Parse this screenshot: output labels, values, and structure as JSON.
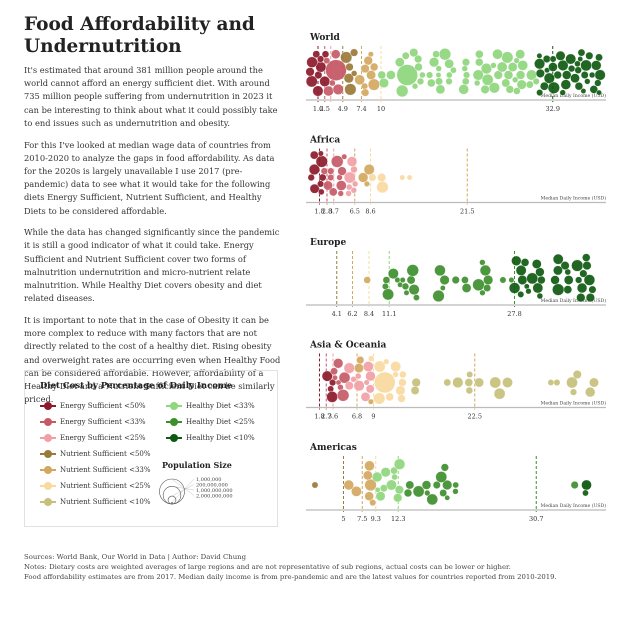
{
  "title": "Food Affordability and Undernutrition",
  "intro": [
    "It's estimated that around 381 million people around the world cannot afford an energy sufficient diet. With around 735 million people suffering from undernutrition in 2023 it can be interesting to think about what it could possibly take to end issues such as undernutrition and obesity.",
    "For this I've looked at median wage data of countries from 2010-2020 to analyze the gaps in food affordability. As data for the 2020s is largely unavailable I use 2017 (pre-pandemic) data to see what it would take for the following diets Energy Sufficient, Nutrient Sufficient, and Healthy Diets to be considered affordable.",
    "While the data has changed significantly since the pandemic it is still a good indicator of what it could take. Energy Sufficient and Nutrient Sufficient cover two forms of malnutrition undernutrition and micro-nutrient relate malnutrition. While Healthy Diet covers obesity and diet related diseases.",
    "It is important to note that in the case of Obesity it can be more complex to reduce with many factors that are not directly related to the cost of a healthy diet. Rising obesity and overweight rates are occurring even when Healthy Food can be considered affordable. However, affordability of a Healthy Diet and a Nutrient Sufficient Diet can be similarly priced."
  ],
  "legend": {
    "title": "Diet Cost by Percentage of Daily Income",
    "items": [
      {
        "label": "Energy Sufficient <50%",
        "color": "#8b1a2b"
      },
      {
        "label": "Energy Sufficient <33%",
        "color": "#c45a66"
      },
      {
        "label": "Energy Sufficient <25%",
        "color": "#f0a0a4"
      },
      {
        "label": "Nutrient Sufficient <50%",
        "color": "#9a7a3a"
      },
      {
        "label": "Nutrient Sufficient <33%",
        "color": "#d2a860"
      },
      {
        "label": "Nutrient Sufficient <25%",
        "color": "#f8d9a0"
      },
      {
        "label": "Nutrient Sufficient <10%",
        "color": "#c6c07a"
      },
      {
        "label": "Healthy Diet <33%",
        "color": "#8fd67e"
      },
      {
        "label": "Healthy Diet <25%",
        "color": "#3e8e2e"
      },
      {
        "label": "Healthy Diet <10%",
        "color": "#0e5a10"
      }
    ],
    "population_title": "Population Size",
    "population_sizes": [
      {
        "label": "1,000,000",
        "value": 1000000
      },
      {
        "label": "200,000,000",
        "value": 200000000
      },
      {
        "label": "1,000,000,000",
        "value": 1000000000
      },
      {
        "label": "2,000,000,000",
        "value": 2000000000
      }
    ]
  },
  "chart_data": [
    {
      "type": "scatter",
      "title": "World",
      "xlabel": "Median Daily Income (USD)",
      "xlim": [
        0,
        40
      ],
      "thresholds": [
        {
          "value": 1.6,
          "label": "1.6",
          "color": "#8b1a2b"
        },
        {
          "value": 2.5,
          "label": "2.5",
          "color": "#c45a66"
        },
        {
          "value": 3.3,
          "label": "",
          "color": "#f0a0a4"
        },
        {
          "value": 4.9,
          "label": "4.9",
          "color": "#9a7a3a"
        },
        {
          "value": 7.4,
          "label": "7.4",
          "color": "#d2a860"
        },
        {
          "value": 10,
          "label": "10",
          "color": "#f8d9a0"
        },
        {
          "value": 32.9,
          "label": "32.9",
          "color": "#0e5a10"
        }
      ],
      "clusters": [
        {
          "from": 0.5,
          "to": 2.6,
          "color": "#8b1a2b",
          "count": 22,
          "seed": 1
        },
        {
          "from": 2.6,
          "to": 5.0,
          "color": "#c45a66",
          "count": 34,
          "seed": 2,
          "big": [
            {
              "x": 4.0,
              "pop": 1400000000
            }
          ]
        },
        {
          "from": 4.9,
          "to": 7.0,
          "color": "#9a7a3a",
          "count": 20,
          "seed": 3
        },
        {
          "from": 7.0,
          "to": 9.8,
          "color": "#d2a860",
          "count": 10,
          "seed": 4
        },
        {
          "from": 9.5,
          "to": 31.0,
          "color": "#8fd67e",
          "count": 75,
          "seed": 5,
          "big": [
            {
              "x": 13.5,
              "pop": 1400000000
            }
          ]
        },
        {
          "from": 31.0,
          "to": 39.5,
          "color": "#0e5a10",
          "count": 50,
          "seed": 6
        }
      ]
    },
    {
      "type": "scatter",
      "title": "Africa",
      "xlabel": "Median Daily Income (USD)",
      "xlim": [
        0,
        40
      ],
      "thresholds": [
        {
          "value": 1.8,
          "label": "1.8",
          "color": "#8b1a2b"
        },
        {
          "value": 2.8,
          "label": "2.8",
          "color": "#c45a66"
        },
        {
          "value": 3.7,
          "label": "3.7",
          "color": "#f0a0a4"
        },
        {
          "value": 6.5,
          "label": "6.5",
          "color": "#d2a860"
        },
        {
          "value": 8.6,
          "label": "8.6",
          "color": "#f8d9a0"
        },
        {
          "value": 21.5,
          "label": "21.5",
          "color": "#d2a860"
        }
      ],
      "clusters": [
        {
          "from": 0.5,
          "to": 2.4,
          "color": "#8b1a2b",
          "count": 14,
          "seed": 11
        },
        {
          "from": 2.4,
          "to": 5.2,
          "color": "#c45a66",
          "count": 20,
          "seed": 12
        },
        {
          "from": 4.8,
          "to": 6.6,
          "color": "#f0a0a4",
          "count": 14,
          "seed": 13
        },
        {
          "from": 7.0,
          "to": 8.5,
          "color": "#d2a860",
          "count": 3,
          "seed": 14
        },
        {
          "from": 8.8,
          "to": 14.0,
          "color": "#f8d9a0",
          "count": 5,
          "seed": 15
        }
      ]
    },
    {
      "type": "scatter",
      "title": "Europe",
      "xlabel": "Median Daily Income (USD)",
      "xlim": [
        0,
        40
      ],
      "thresholds": [
        {
          "value": 4.1,
          "label": "4.1",
          "color": "#9a7a3a"
        },
        {
          "value": 6.2,
          "label": "6.2",
          "color": "#d2a860"
        },
        {
          "value": 8.4,
          "label": "8.4",
          "color": "#f8d9a0"
        },
        {
          "value": 11.1,
          "label": "11.1",
          "color": "#8fd67e"
        },
        {
          "value": 27.8,
          "label": "27.8",
          "color": "#3e8e2e"
        }
      ],
      "clusters": [
        {
          "from": 8.0,
          "to": 8.6,
          "color": "#d2a860",
          "count": 1,
          "seed": 21
        },
        {
          "from": 10.5,
          "to": 27.5,
          "color": "#3e8e2e",
          "count": 28,
          "seed": 22
        },
        {
          "from": 27.5,
          "to": 38.5,
          "color": "#0e5a10",
          "count": 40,
          "seed": 23
        }
      ]
    },
    {
      "type": "scatter",
      "title": "Asia & Oceania",
      "xlabel": "Median Daily Income (USD)",
      "xlim": [
        0,
        40
      ],
      "thresholds": [
        {
          "value": 1.8,
          "label": "1.8",
          "color": "#8b1a2b"
        },
        {
          "value": 2.7,
          "label": "2.7",
          "color": "#c45a66"
        },
        {
          "value": 3.6,
          "label": "3.6",
          "color": "#f0a0a4"
        },
        {
          "value": 6.8,
          "label": "6.8",
          "color": "#d2a860"
        },
        {
          "value": 9,
          "label": "9",
          "color": "#f8d9a0"
        },
        {
          "value": 22.5,
          "label": "22.5",
          "color": "#d2a860"
        }
      ],
      "clusters": [
        {
          "from": 2.8,
          "to": 4.0,
          "color": "#8b1a2b",
          "count": 4,
          "seed": 31
        },
        {
          "from": 3.6,
          "to": 5.2,
          "color": "#c45a66",
          "count": 10,
          "seed": 32
        },
        {
          "from": 4.5,
          "to": 8.8,
          "color": "#f0a0a4",
          "count": 18,
          "seed": 33,
          "big": [
            {
              "x": 5.2,
              "pop": 1400000000
            }
          ]
        },
        {
          "from": 6.8,
          "to": 8.8,
          "color": "#d2a860",
          "count": 6,
          "seed": 34
        },
        {
          "from": 8.6,
          "to": 13.0,
          "color": "#f8d9a0",
          "count": 22,
          "seed": 35,
          "big": [
            {
              "x": 10.5,
              "pop": 1400000000
            }
          ]
        },
        {
          "from": 13.0,
          "to": 38.5,
          "color": "#c6c07a",
          "count": 18,
          "seed": 36
        }
      ]
    },
    {
      "type": "scatter",
      "title": "Americas",
      "xlabel": "Median Daily Income (USD)",
      "xlim": [
        0,
        40
      ],
      "thresholds": [
        {
          "value": 5,
          "label": "5",
          "color": "#9a7a3a"
        },
        {
          "value": 7.5,
          "label": "7.5",
          "color": "#d2a860"
        },
        {
          "value": 9.3,
          "label": "9.3",
          "color": "#f8d9a0"
        },
        {
          "value": 12.3,
          "label": "12.3",
          "color": "#8fd67e"
        },
        {
          "value": 30.7,
          "label": "30.7",
          "color": "#3e8e2e"
        }
      ],
      "clusters": [
        {
          "from": 0.9,
          "to": 1.2,
          "color": "#9a7a3a",
          "count": 1,
          "seed": 41
        },
        {
          "from": 5.5,
          "to": 9.3,
          "color": "#d2a860",
          "count": 8,
          "seed": 42
        },
        {
          "from": 9.3,
          "to": 12.5,
          "color": "#8fd67e",
          "count": 12,
          "seed": 43
        },
        {
          "from": 12.3,
          "to": 20.0,
          "color": "#3e8e2e",
          "count": 14,
          "seed": 44
        },
        {
          "from": 35.5,
          "to": 36.5,
          "color": "#3e8e2e",
          "count": 1,
          "seed": 45
        },
        {
          "from": 37.2,
          "to": 37.6,
          "color": "#0e5a10",
          "count": 1,
          "seed": 46,
          "big": [
            {
              "x": 37.4,
              "pop": 330000000
            }
          ]
        }
      ]
    }
  ],
  "footer": [
    "Sources: World Bank, Our World in Data | Author: David Chung",
    "Notes: Dietary costs are weighted averages of large regions and are not representative of sub regions, actual costs can be lower or higher.",
    "Food affordability estimates are from 2017. Median daily income is from pre-pandemic and are the latest values for countries reported from 2010-2019."
  ]
}
